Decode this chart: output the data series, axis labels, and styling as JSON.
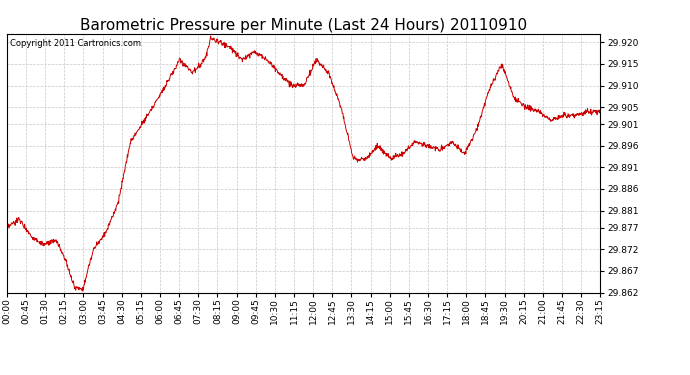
{
  "title": "Barometric Pressure per Minute (Last 24 Hours) 20110910",
  "copyright": "Copyright 2011 Cartronics.com",
  "line_color": "#cc0000",
  "background_color": "#ffffff",
  "plot_bg_color": "#ffffff",
  "grid_color": "#c8c8c8",
  "ylim": [
    29.862,
    29.922
  ],
  "yticks": [
    29.862,
    29.867,
    29.872,
    29.877,
    29.881,
    29.886,
    29.891,
    29.896,
    29.901,
    29.905,
    29.91,
    29.915,
    29.92
  ],
  "xtick_labels": [
    "00:00",
    "00:45",
    "01:30",
    "02:15",
    "03:00",
    "03:45",
    "04:30",
    "05:15",
    "06:00",
    "06:45",
    "07:30",
    "08:15",
    "09:00",
    "09:45",
    "10:30",
    "11:15",
    "12:00",
    "12:45",
    "13:30",
    "14:15",
    "15:00",
    "15:45",
    "16:30",
    "17:15",
    "18:00",
    "18:45",
    "19:30",
    "20:15",
    "21:00",
    "21:45",
    "22:30",
    "23:15"
  ],
  "title_fontsize": 11,
  "tick_fontsize": 6.5,
  "copyright_fontsize": 6
}
